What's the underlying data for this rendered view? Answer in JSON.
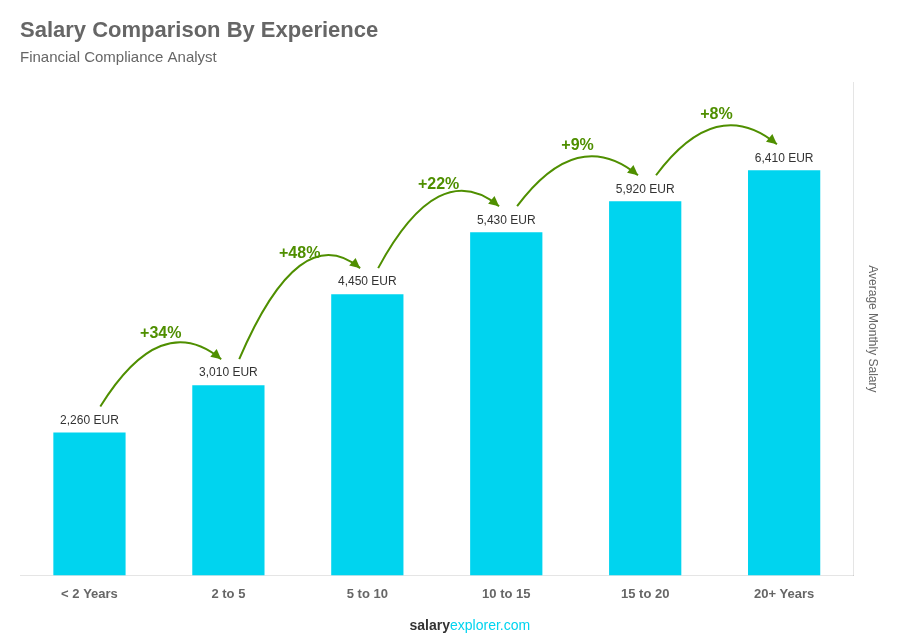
{
  "chart_data": {
    "type": "bar",
    "title": "Salary Comparison By Experience",
    "subtitle": "Financial Compliance Analyst",
    "ylabel": "Average Monthly Salary",
    "categories": [
      "< 2 Years",
      "2 to 5",
      "5 to 10",
      "10 to 15",
      "15 to 20",
      "20+ Years"
    ],
    "values": [
      2260,
      3010,
      4450,
      5430,
      5920,
      6410
    ],
    "value_labels": [
      "2,260 EUR",
      "3,010 EUR",
      "4,450 EUR",
      "5,430 EUR",
      "5,920 EUR",
      "6,410 EUR"
    ],
    "data_labels": true,
    "annotations": [
      "+34%",
      "+48%",
      "+22%",
      "+9%",
      "+8%"
    ],
    "footer": [
      "salary",
      "explorer.com"
    ],
    "color": "#00d4ef",
    "ylim": [
      0,
      7800
    ],
    "grid": false,
    "tick_labels": "x"
  }
}
